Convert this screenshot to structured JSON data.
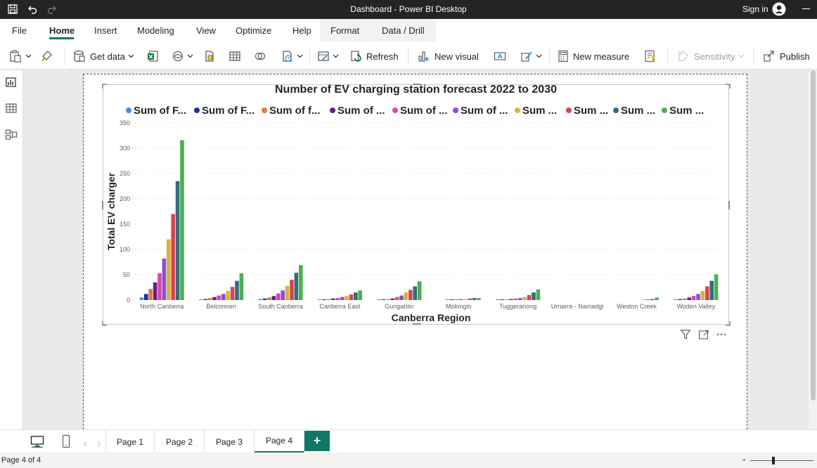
{
  "window": {
    "title": "Dashboard - Power BI Desktop",
    "signin_label": "Sign in"
  },
  "menu": {
    "items": [
      "File",
      "Home",
      "Insert",
      "Modeling",
      "View",
      "Optimize",
      "Help",
      "Format",
      "Data / Drill"
    ],
    "active": "Home"
  },
  "ribbon": {
    "get_data": "Get data",
    "refresh": "Refresh",
    "new_visual": "New visual",
    "new_measure": "New measure",
    "sensitivity": "Sensitivity",
    "publish": "Publish"
  },
  "pages": {
    "tabs": [
      "Page 1",
      "Page 2",
      "Page 3",
      "Page 4"
    ],
    "active": "Page 4",
    "add_label": "+"
  },
  "status": {
    "page_info": "Page 4 of 4",
    "zoom_minus": "-"
  },
  "colors": {
    "accent": "#117865",
    "titlebar": "#252423"
  },
  "icons": [
    "save-icon",
    "undo-icon",
    "redo-icon",
    "avatar-icon",
    "filter-icon",
    "focus-mode-icon",
    "more-options-icon"
  ],
  "chart_data": {
    "type": "bar",
    "title": "Number of EV charging station forecast 2022 to 2030",
    "xlabel": "Canberra Region",
    "ylabel": "Total EV charger",
    "ylim": [
      0,
      350
    ],
    "yticks": [
      0,
      50,
      100,
      150,
      200,
      250,
      300,
      350
    ],
    "grid": true,
    "legend_position": "top",
    "categories": [
      "North Canberra",
      "Belconnen",
      "South Canberra",
      "Canberra East",
      "Gungahlin",
      "Molonglo",
      "Tuggeranong",
      "Urriarra - Namadgi",
      "Weston Creek",
      "Woden Valley"
    ],
    "series": [
      {
        "name": "Sum of F...",
        "color": "#3b8fe8",
        "values": [
          5,
          1,
          2,
          1,
          1,
          0,
          1,
          0,
          0,
          1
        ]
      },
      {
        "name": "Sum of F...",
        "color": "#1f2ea8",
        "values": [
          12,
          2,
          3,
          1,
          1,
          0,
          1,
          0,
          0,
          2
        ]
      },
      {
        "name": "Sum of f...",
        "color": "#e07b39",
        "values": [
          22,
          4,
          5,
          2,
          2,
          1,
          1,
          0,
          0,
          3
        ]
      },
      {
        "name": "Sum of ...",
        "color": "#6b1c8e",
        "values": [
          35,
          6,
          8,
          3,
          3,
          1,
          2,
          0,
          0,
          5
        ]
      },
      {
        "name": "Sum of ...",
        "color": "#e044a7",
        "values": [
          53,
          9,
          13,
          4,
          6,
          1,
          3,
          0,
          0,
          8
        ]
      },
      {
        "name": "Sum of ...",
        "color": "#8a4fd4",
        "values": [
          82,
          12,
          19,
          6,
          9,
          2,
          4,
          0,
          0,
          12
        ]
      },
      {
        "name": "Sum ...",
        "color": "#d9b238",
        "values": [
          120,
          18,
          28,
          8,
          15,
          2,
          6,
          0,
          1,
          18
        ]
      },
      {
        "name": "Sum ...",
        "color": "#d64550",
        "values": [
          170,
          26,
          40,
          11,
          20,
          3,
          10,
          0,
          1,
          27
        ]
      },
      {
        "name": "Sum ...",
        "color": "#2f6e7c",
        "values": [
          235,
          38,
          54,
          15,
          27,
          4,
          15,
          0,
          2,
          38
        ]
      },
      {
        "name": "Sum ...",
        "color": "#4caf50",
        "values": [
          316,
          53,
          69,
          19,
          37,
          4,
          21,
          0,
          5,
          51
        ]
      }
    ]
  }
}
